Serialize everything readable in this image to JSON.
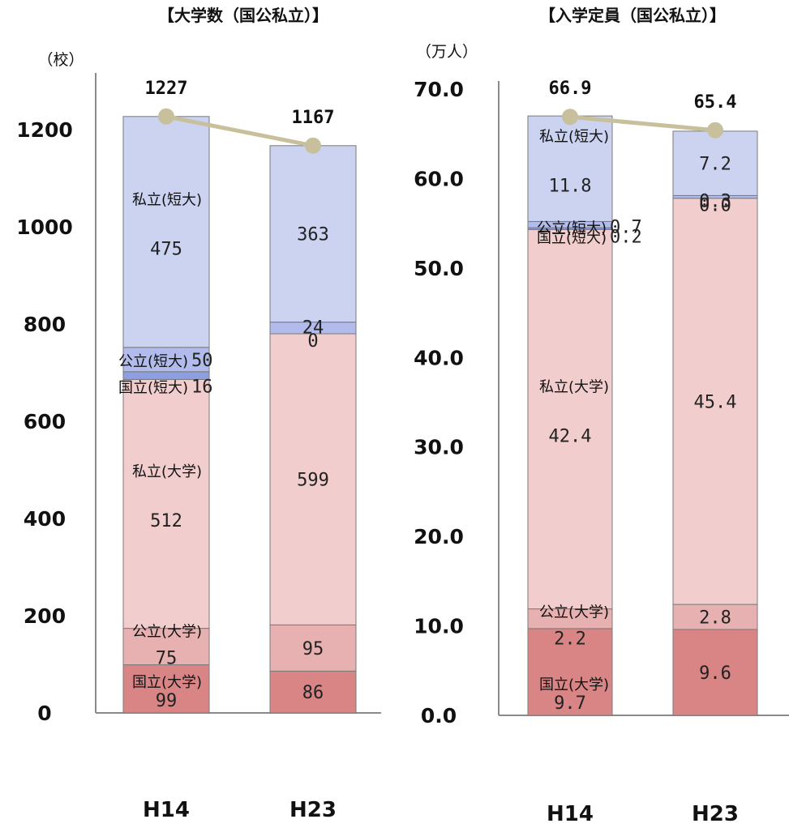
{
  "chart_data": [
    {
      "type": "bar",
      "title": "【大学数（国公私立）】",
      "ylabel": "（校）",
      "ylim": [
        0,
        1200
      ],
      "yticks": [
        "0",
        "200",
        "400",
        "600",
        "800",
        "1000",
        "1200"
      ],
      "categories": [
        "H14",
        "H23"
      ],
      "series": [
        {
          "name": "国立(大学)",
          "values": [
            99,
            86
          ],
          "labels": [
            "99",
            "86"
          ],
          "color": "#d98585"
        },
        {
          "name": "公立(大学)",
          "values": [
            75,
            95
          ],
          "labels": [
            "75",
            "95"
          ],
          "color": "#e8b1b1"
        },
        {
          "name": "私立(大学)",
          "values": [
            512,
            599
          ],
          "labels": [
            "512",
            "599"
          ],
          "color": "#f2cdcd"
        },
        {
          "name": "国立(短大)",
          "values": [
            16,
            0
          ],
          "labels": [
            "16",
            "0"
          ],
          "color": "#8e9fdf"
        },
        {
          "name": "公立(短大)",
          "values": [
            50,
            24
          ],
          "labels": [
            "50",
            "24"
          ],
          "color": "#b1bcec"
        },
        {
          "name": "私立(短大)",
          "values": [
            475,
            363
          ],
          "labels": [
            "475",
            "363"
          ],
          "color": "#cbd3f0"
        }
      ],
      "totals": [
        1227,
        1167
      ],
      "total_labels": [
        "1227",
        "1167"
      ]
    },
    {
      "type": "bar",
      "title": "【入学定員（国公私立）】",
      "ylabel": "（万人）",
      "ylim": [
        0,
        70
      ],
      "yticks": [
        "0.0",
        "10.0",
        "20.0",
        "30.0",
        "40.0",
        "50.0",
        "60.0",
        "70.0"
      ],
      "categories": [
        "H14",
        "H23"
      ],
      "series": [
        {
          "name": "国立(大学)",
          "values": [
            9.7,
            9.6
          ],
          "labels": [
            "9.7",
            "9.6"
          ],
          "color": "#d98585"
        },
        {
          "name": "公立(大学)",
          "values": [
            2.2,
            2.8
          ],
          "labels": [
            "2.2",
            "2.8"
          ],
          "color": "#e8b1b1"
        },
        {
          "name": "私立(大学)",
          "values": [
            42.4,
            45.4
          ],
          "labels": [
            "42.4",
            "45.4"
          ],
          "color": "#f2cdcd"
        },
        {
          "name": "国立(短大)",
          "values": [
            0.2,
            0.0
          ],
          "labels": [
            "0.2",
            "0.0"
          ],
          "color": "#8e9fdf"
        },
        {
          "name": "公立(短大)",
          "values": [
            0.7,
            0.3
          ],
          "labels": [
            "0.7",
            "0.3"
          ],
          "color": "#b1bcec"
        },
        {
          "name": "私立(短大)",
          "values": [
            11.8,
            7.2
          ],
          "labels": [
            "11.8",
            "7.2"
          ],
          "color": "#cbd3f0"
        }
      ],
      "totals": [
        66.9,
        65.4
      ],
      "total_labels": [
        "66.9",
        "65.4"
      ]
    }
  ],
  "style": {
    "trend_line_color": "#c8bf9c",
    "axis_color": "#8a8a8a",
    "bar_edge_color": "#7a7a7a"
  }
}
